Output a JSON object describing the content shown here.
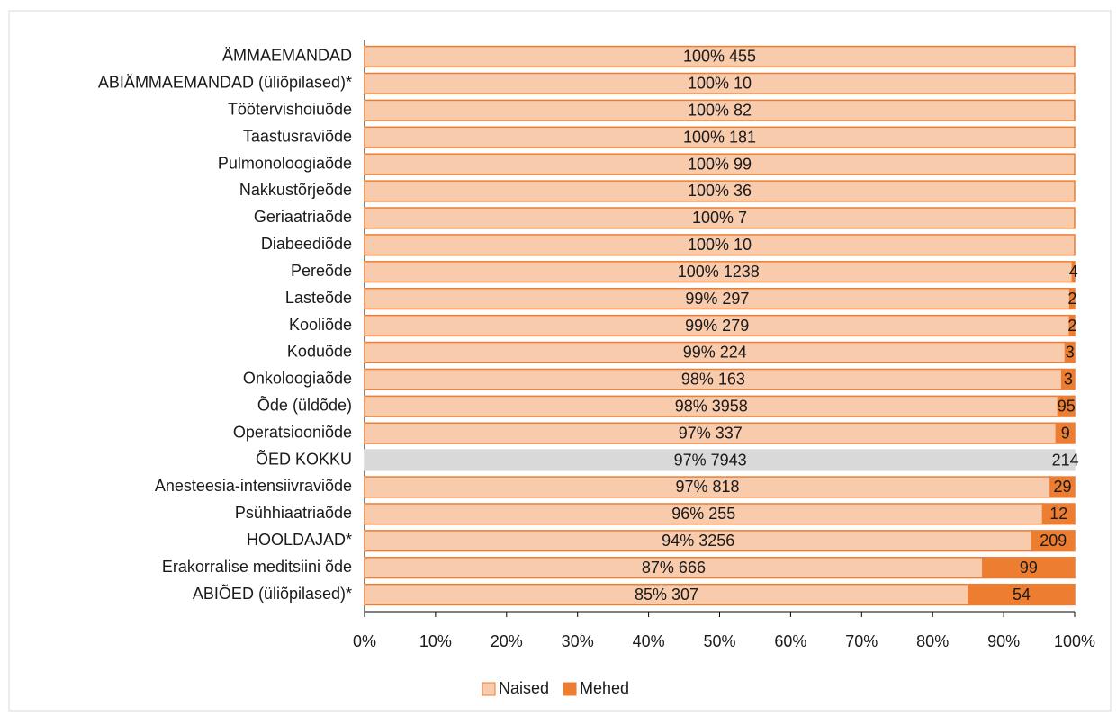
{
  "chart_data": {
    "type": "stacked_barh",
    "categories": [
      "ÄMMAEMANDAD",
      "ABIÄMMAEMANDAD (üliõpilased)*",
      "Töötervishoiuõde",
      "Taastusraviõde",
      "Pulmonoloogiaõde",
      "Nakkustõrjeõde",
      "Geriaatriaõde",
      "Diabeediõde",
      "Pereõde",
      "Lasteõde",
      "Kooliõde",
      "Koduõde",
      "Onkoloogiaõde",
      "Õde (üldõde)",
      "Operatsiooniõde",
      "ÕED KOKKU",
      "Anesteesia-intensiivraviõde",
      "Psühhiaatriaõde",
      "HOOLDAJAD*",
      "Erakorralise meditsiini õde",
      "ABIÕED (üliõpilased)*"
    ],
    "series": [
      {
        "name": "Naised",
        "color": "#f8cbad",
        "stroke": "#ed7d31",
        "values": [
          100,
          100,
          100,
          100,
          100,
          100,
          100,
          100,
          99.68,
          99.33,
          99.29,
          98.68,
          98.19,
          97.66,
          97.4,
          97.38,
          96.58,
          95.51,
          93.97,
          87.06,
          85.04
        ],
        "value_labels": [
          "100% 455",
          "100% 10",
          "100% 82",
          "100% 181",
          "100% 99",
          "100% 36",
          "100% 7",
          "100% 10",
          "100% 1238",
          "99% 297",
          "99% 279",
          "99% 224",
          "98% 163",
          "98% 3958",
          "97% 337",
          "97% 7943",
          "97% 818",
          "96% 255",
          "94% 3256",
          "87% 666",
          "85% 307"
        ]
      },
      {
        "name": "Mehed",
        "color": "#ed7d31",
        "stroke": "#ed7d31",
        "values": [
          0,
          0,
          0,
          0,
          0,
          0,
          0,
          0,
          0.32,
          0.67,
          0.71,
          1.32,
          1.81,
          2.34,
          2.6,
          2.62,
          3.42,
          4.49,
          6.03,
          12.94,
          14.96
        ],
        "value_labels": [
          null,
          null,
          null,
          null,
          null,
          null,
          null,
          null,
          "4",
          "2",
          "2",
          "3",
          "3",
          "95",
          "9",
          "214",
          "29",
          "12",
          "209",
          "99",
          "54"
        ]
      }
    ],
    "highlight": {
      "category": "ÕED KOKKU",
      "color": "#d9d9d9"
    },
    "xlim": [
      0,
      100
    ],
    "xticks": [
      {
        "value": 0,
        "label": "0%"
      },
      {
        "value": 10,
        "label": "10%"
      },
      {
        "value": 20,
        "label": "20%"
      },
      {
        "value": 30,
        "label": "30%"
      },
      {
        "value": 40,
        "label": "40%"
      },
      {
        "value": 50,
        "label": "50%"
      },
      {
        "value": 60,
        "label": "60%"
      },
      {
        "value": 70,
        "label": "70%"
      },
      {
        "value": 80,
        "label": "80%"
      },
      {
        "value": 90,
        "label": "90%"
      },
      {
        "value": 100,
        "label": "100%"
      }
    ],
    "legend": "bottom"
  }
}
